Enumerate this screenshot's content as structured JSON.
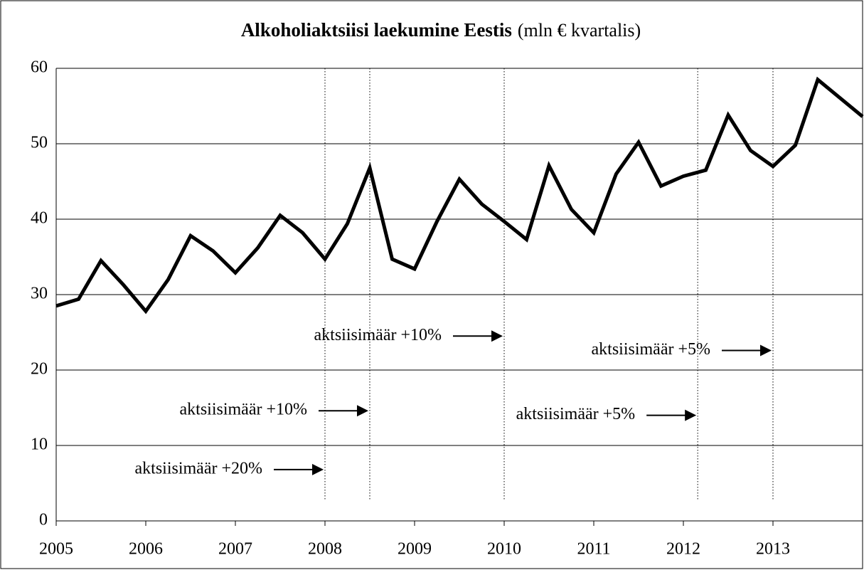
{
  "chart_data": {
    "type": "line",
    "title": "Alkoholiaktsiisi laekumine Eestis",
    "subtitle": "(mln € kvartalis)",
    "x": [
      2005,
      2005.25,
      2005.5,
      2005.75,
      2006,
      2006.25,
      2006.5,
      2006.75,
      2007,
      2007.25,
      2007.5,
      2007.75,
      2008,
      2008.25,
      2008.5,
      2008.75,
      2009,
      2009.25,
      2009.5,
      2009.75,
      2010,
      2010.25,
      2010.5,
      2010.75,
      2011,
      2011.25,
      2011.5,
      2011.75,
      2012,
      2012.25,
      2012.5,
      2012.75,
      2013,
      2013.25,
      2013.5,
      2014
    ],
    "values": [
      28.5,
      29.4,
      34.5,
      31.3,
      27.8,
      32.0,
      37.8,
      35.8,
      32.9,
      36.2,
      40.5,
      38.2,
      34.7,
      39.4,
      46.8,
      34.7,
      33.4,
      39.7,
      45.3,
      42.0,
      39.7,
      37.3,
      47.1,
      41.3,
      38.2,
      46.0,
      50.2,
      44.4,
      45.7,
      46.5,
      53.8,
      49.1,
      47.0,
      49.8,
      58.5,
      53.6
    ],
    "color": "#000000",
    "xlim": [
      2005,
      2014
    ],
    "xticks": [
      2005,
      2006,
      2007,
      2008,
      2009,
      2010,
      2011,
      2012,
      2013
    ],
    "ylim": [
      0,
      60
    ],
    "yticks": [
      0,
      10,
      20,
      30,
      40,
      50,
      60
    ],
    "grid": true,
    "events": [
      {
        "x": 2008,
        "label": "aktsiisimäär +20%",
        "y": 6.8
      },
      {
        "x": 2008.5,
        "label": "aktsiisimäär +10%",
        "y": 14.6
      },
      {
        "x": 2010,
        "label": "aktsiisimäär +10%",
        "y": 24.5
      },
      {
        "x": 2012.16,
        "label": "aktsiisimäär +5%",
        "y": 14
      },
      {
        "x": 2013,
        "label": "aktsiisimäär +5%",
        "y": 22.6
      }
    ]
  }
}
